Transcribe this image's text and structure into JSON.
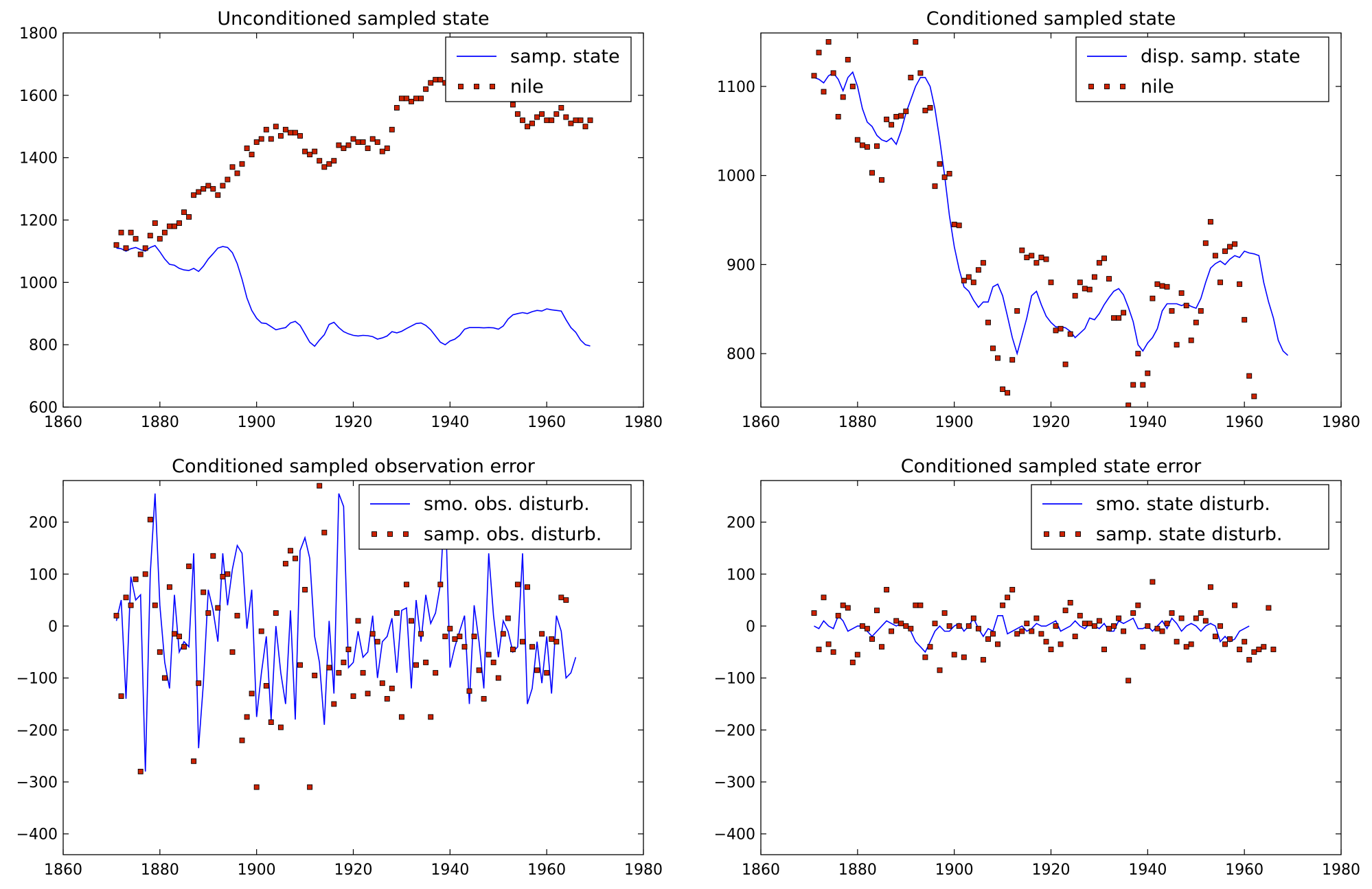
{
  "chart_data": [
    {
      "type": "line",
      "title": "Unconditioned sampled state",
      "xlabel": "",
      "ylabel": "",
      "xlim": [
        1860,
        1980
      ],
      "ylim": [
        600,
        1800
      ],
      "xticks": [
        1860,
        1880,
        1900,
        1920,
        1940,
        1960,
        1980
      ],
      "yticks": [
        600,
        800,
        1000,
        1200,
        1400,
        1600,
        1800
      ],
      "grid": false,
      "legend_position": "top-right",
      "x_start": 1871,
      "series": [
        {
          "name": "samp. state",
          "style": "line",
          "color": "#0000ff",
          "values": [
            1110,
            1108,
            1100,
            1108,
            1112,
            1105,
            1100,
            1112,
            1118,
            1098,
            1075,
            1058,
            1055,
            1045,
            1040,
            1038,
            1045,
            1035,
            1052,
            1075,
            1092,
            1110,
            1115,
            1112,
            1095,
            1060,
            1010,
            950,
            910,
            885,
            870,
            868,
            858,
            848,
            852,
            855,
            870,
            875,
            862,
            835,
            808,
            795,
            815,
            832,
            865,
            872,
            855,
            842,
            835,
            830,
            828,
            830,
            829,
            826,
            818,
            822,
            828,
            842,
            838,
            843,
            852,
            860,
            868,
            870,
            862,
            848,
            828,
            808,
            800,
            812,
            818,
            830,
            850,
            855,
            855,
            855,
            854,
            855,
            854,
            850,
            860,
            882,
            896,
            900,
            903,
            900,
            906,
            910,
            908,
            915,
            912,
            910,
            908,
            880,
            855,
            840,
            815,
            800,
            796
          ]
        },
        {
          "name": "nile",
          "style": "markers",
          "color": "#cc2200",
          "values": [
            1120,
            1160,
            1110,
            1160,
            1140,
            1090,
            1110,
            1150,
            1190,
            1140,
            1160,
            1180,
            1180,
            1190,
            1225,
            1210,
            1280,
            1290,
            1300,
            1310,
            1300,
            1280,
            1310,
            1330,
            1370,
            1350,
            1380,
            1430,
            1410,
            1450,
            1460,
            1490,
            1460,
            1500,
            1470,
            1490,
            1480,
            1480,
            1470,
            1420,
            1410,
            1420,
            1390,
            1370,
            1380,
            1390,
            1440,
            1430,
            1440,
            1460,
            1450,
            1450,
            1430,
            1460,
            1450,
            1420,
            1430,
            1490,
            1560,
            1590,
            1590,
            1580,
            1590,
            1590,
            1620,
            1640,
            1650,
            1650,
            1640,
            1640,
            1660,
            1640,
            1640,
            1650,
            1660,
            1620,
            1640,
            1660,
            1620,
            1600,
            1600,
            1640,
            1570,
            1540,
            1520,
            1500,
            1510,
            1530,
            1540,
            1520,
            1520,
            1540,
            1560,
            1530,
            1510,
            1520,
            1520,
            1500,
            1520
          ]
        }
      ]
    },
    {
      "type": "line",
      "title": "Conditioned sampled state",
      "xlabel": "",
      "ylabel": "",
      "xlim": [
        1860,
        1980
      ],
      "ylim": [
        740,
        1160
      ],
      "xticks": [
        1860,
        1880,
        1900,
        1920,
        1940,
        1960,
        1980
      ],
      "yticks": [
        800,
        900,
        1000,
        1100
      ],
      "grid": false,
      "legend_position": "top-right",
      "x_start": 1871,
      "series": [
        {
          "name": "disp. samp. state",
          "style": "line",
          "color": "#0000ff",
          "values": [
            1110,
            1108,
            1104,
            1112,
            1115,
            1108,
            1095,
            1110,
            1116,
            1100,
            1075,
            1060,
            1055,
            1045,
            1040,
            1038,
            1042,
            1035,
            1050,
            1070,
            1085,
            1100,
            1110,
            1110,
            1100,
            1075,
            1040,
            1000,
            955,
            920,
            895,
            875,
            870,
            860,
            852,
            858,
            858,
            875,
            878,
            865,
            842,
            818,
            800,
            820,
            840,
            865,
            870,
            855,
            842,
            835,
            830,
            830,
            829,
            825,
            818,
            823,
            828,
            840,
            838,
            845,
            855,
            863,
            870,
            873,
            866,
            852,
            836,
            810,
            803,
            812,
            818,
            828,
            848,
            856,
            856,
            856,
            854,
            856,
            853,
            851,
            862,
            880,
            896,
            901,
            904,
            900,
            906,
            910,
            908,
            915,
            913,
            912,
            910,
            880,
            858,
            840,
            815,
            803,
            798
          ]
        },
        {
          "name": "nile",
          "style": "markers",
          "color": "#cc2200",
          "values": [
            1112,
            1138,
            1094,
            1150,
            1115,
            1066,
            1088,
            1130,
            1100,
            1040,
            1034,
            1032,
            1003,
            1033,
            995,
            1063,
            1057,
            1066,
            1067,
            1072,
            1110,
            1150,
            1115,
            1073,
            1076,
            988,
            1013,
            998,
            1002,
            945,
            944,
            882,
            886,
            880,
            894,
            902,
            835,
            806,
            795,
            760,
            756,
            793,
            848,
            916,
            908,
            910,
            902,
            908,
            906,
            880,
            826,
            828,
            788,
            822,
            865,
            880,
            873,
            872,
            886,
            902,
            907,
            884,
            840,
            840,
            846,
            742,
            765,
            800,
            765,
            778,
            862,
            878,
            876,
            875,
            848,
            810,
            868,
            854,
            815,
            835,
            848,
            924,
            948,
            910,
            880,
            915,
            920,
            923,
            878,
            838,
            775,
            752
          ]
        }
      ]
    },
    {
      "type": "line",
      "title": "Conditioned sampled observation error",
      "xlabel": "",
      "ylabel": "",
      "xlim": [
        1860,
        1980
      ],
      "ylim": [
        -440,
        280
      ],
      "xticks": [
        1860,
        1880,
        1900,
        1920,
        1940,
        1960,
        1980
      ],
      "yticks": [
        -400,
        -300,
        -200,
        -100,
        0,
        100,
        200
      ],
      "grid": false,
      "legend_position": "top-right",
      "x_start": 1871,
      "series": [
        {
          "name": "smo. obs. disturb.",
          "style": "line",
          "color": "#0000ff",
          "values": [
            10,
            50,
            -140,
            95,
            50,
            60,
            -280,
            100,
            255,
            40,
            -70,
            -120,
            60,
            -50,
            -30,
            -40,
            140,
            -235,
            -110,
            70,
            30,
            -30,
            140,
            40,
            110,
            155,
            140,
            -5,
            70,
            -175,
            -90,
            -20,
            -180,
            0,
            -90,
            -150,
            30,
            -180,
            145,
            170,
            130,
            -20,
            -70,
            -190,
            10,
            -130,
            255,
            230,
            -80,
            -70,
            -10,
            -60,
            -50,
            20,
            -100,
            -30,
            -20,
            15,
            -90,
            30,
            35,
            -120,
            50,
            -30,
            60,
            5,
            25,
            80,
            250,
            -80,
            -40,
            -10,
            20,
            -150,
            40,
            -30,
            -120,
            140,
            20,
            -60,
            10,
            -10,
            -50,
            -40,
            140,
            -150,
            -120,
            -30,
            -110,
            -20,
            -130,
            20,
            -10,
            -100,
            -90,
            -60
          ]
        },
        {
          "name": "samp. obs. disturb.",
          "style": "markers",
          "color": "#cc2200",
          "values": [
            20,
            -135,
            55,
            40,
            90,
            -280,
            100,
            205,
            40,
            -50,
            -100,
            75,
            -15,
            -20,
            -40,
            115,
            -260,
            -110,
            65,
            25,
            135,
            35,
            95,
            100,
            -50,
            20,
            -220,
            -175,
            -130,
            -310,
            -10,
            -115,
            -185,
            25,
            -195,
            120,
            145,
            130,
            -75,
            70,
            -310,
            -95,
            270,
            180,
            -80,
            -150,
            -90,
            -70,
            -45,
            -135,
            10,
            -90,
            -130,
            -15,
            -30,
            -110,
            -140,
            -120,
            25,
            -175,
            80,
            10,
            -75,
            -15,
            -70,
            -175,
            -90,
            80,
            -20,
            -5,
            -25,
            -20,
            -40,
            -125,
            -20,
            -85,
            -140,
            -55,
            -70,
            -100,
            -15,
            15,
            -45,
            80,
            -30,
            75,
            -40,
            -85,
            -15,
            -90,
            -25,
            -30,
            55,
            50
          ]
        }
      ]
    },
    {
      "type": "line",
      "title": "Conditioned sampled state error",
      "xlabel": "",
      "ylabel": "",
      "xlim": [
        1860,
        1980
      ],
      "ylim": [
        -440,
        280
      ],
      "xticks": [
        1860,
        1880,
        1900,
        1920,
        1940,
        1960,
        1980
      ],
      "yticks": [
        -400,
        -300,
        -200,
        -100,
        0,
        100,
        200
      ],
      "grid": false,
      "legend_position": "top-right",
      "x_start": 1871,
      "series": [
        {
          "name": "smo. state disturb.",
          "style": "line",
          "color": "#0000ff",
          "values": [
            0,
            -5,
            10,
            0,
            -5,
            20,
            10,
            -10,
            -5,
            0,
            0,
            -10,
            -20,
            -10,
            0,
            10,
            5,
            0,
            5,
            0,
            -10,
            -30,
            -40,
            -50,
            -30,
            -10,
            0,
            -10,
            -10,
            0,
            5,
            -10,
            0,
            15,
            -5,
            -20,
            -5,
            -10,
            20,
            20,
            -15,
            -10,
            -5,
            0,
            -10,
            -5,
            5,
            0,
            0,
            5,
            10,
            -10,
            -5,
            0,
            10,
            0,
            -5,
            5,
            0,
            -5,
            5,
            -10,
            -10,
            10,
            5,
            10,
            15,
            -5,
            -5,
            0,
            -10,
            0,
            10,
            -5,
            15,
            5,
            -10,
            0,
            5,
            0,
            -10,
            0,
            5,
            0,
            -30,
            -20,
            -30,
            -25,
            -10,
            -5,
            0
          ]
        },
        {
          "name": "samp. state disturb.",
          "style": "markers",
          "color": "#cc2200",
          "values": [
            25,
            -45,
            55,
            -35,
            -50,
            20,
            40,
            35,
            -70,
            -55,
            0,
            -5,
            -25,
            30,
            -40,
            70,
            -10,
            10,
            5,
            0,
            -5,
            40,
            40,
            -60,
            -40,
            5,
            -85,
            25,
            0,
            -55,
            0,
            -60,
            0,
            15,
            -5,
            -65,
            -25,
            -15,
            -35,
            40,
            55,
            70,
            -15,
            -10,
            5,
            -10,
            15,
            -15,
            -30,
            -45,
            0,
            -35,
            30,
            45,
            -20,
            20,
            5,
            5,
            0,
            10,
            -45,
            -5,
            0,
            15,
            -10,
            -105,
            25,
            40,
            -40,
            0,
            85,
            -5,
            -10,
            5,
            25,
            -30,
            15,
            -40,
            -35,
            15,
            25,
            10,
            75,
            -20,
            0,
            -35,
            -25,
            40,
            -45,
            -30,
            -65,
            -50,
            -45,
            -40,
            35,
            -45
          ]
        }
      ]
    }
  ]
}
